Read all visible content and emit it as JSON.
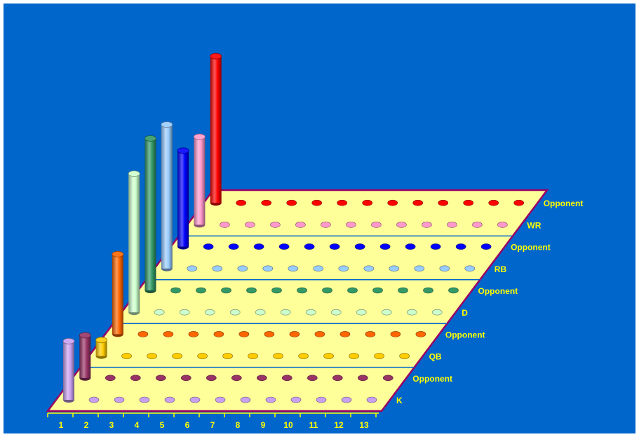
{
  "chart_data": {
    "type": "bar",
    "style": "3d-cylinder",
    "categories": [
      "1",
      "2",
      "3",
      "4",
      "5",
      "6",
      "7",
      "8",
      "9",
      "10",
      "11",
      "12",
      "13"
    ],
    "series": [
      {
        "name": "K",
        "color": "#c8a0f0",
        "values": [
          22,
          0,
          0,
          0,
          0,
          0,
          0,
          0,
          0,
          0,
          0,
          0,
          0
        ]
      },
      {
        "name": "Opponent",
        "color": "#993366",
        "values": [
          16,
          0,
          0,
          0,
          0,
          0,
          0,
          0,
          0,
          0,
          0,
          0,
          0
        ]
      },
      {
        "name": "QB",
        "color": "#ffcc00",
        "values": [
          6,
          0,
          0,
          0,
          0,
          0,
          0,
          0,
          0,
          0,
          0,
          0,
          0
        ]
      },
      {
        "name": "Opponent",
        "color": "#ff6600",
        "values": [
          30,
          0,
          0,
          0,
          0,
          0,
          0,
          0,
          0,
          0,
          0,
          0,
          0
        ]
      },
      {
        "name": "D",
        "color": "#ccffcc",
        "values": [
          52,
          0,
          0,
          0,
          0,
          0,
          0,
          0,
          0,
          0,
          0,
          0,
          0
        ]
      },
      {
        "name": "Opponent",
        "color": "#339966",
        "values": [
          57,
          0,
          0,
          0,
          0,
          0,
          0,
          0,
          0,
          0,
          0,
          0,
          0
        ]
      },
      {
        "name": "RB",
        "color": "#99ccff",
        "values": [
          54,
          0,
          0,
          0,
          0,
          0,
          0,
          0,
          0,
          0,
          0,
          0,
          0
        ]
      },
      {
        "name": "Opponent",
        "color": "#0000ff",
        "values": [
          36,
          0,
          0,
          0,
          0,
          0,
          0,
          0,
          0,
          0,
          0,
          0,
          0
        ]
      },
      {
        "name": "WR",
        "color": "#ff99cc",
        "values": [
          33,
          0,
          0,
          0,
          0,
          0,
          0,
          0,
          0,
          0,
          0,
          0,
          0
        ]
      },
      {
        "name": "Opponent",
        "color": "#ff0000",
        "values": [
          55,
          0,
          0,
          0,
          0,
          0,
          0,
          0,
          0,
          0,
          0,
          0,
          0
        ]
      }
    ],
    "floor_color": "#ffff99",
    "floor_edge_color": "#990066",
    "separator_color": "#0066cc",
    "label_color": "#ffff00",
    "background_color": "#0066cc",
    "grid": false
  }
}
